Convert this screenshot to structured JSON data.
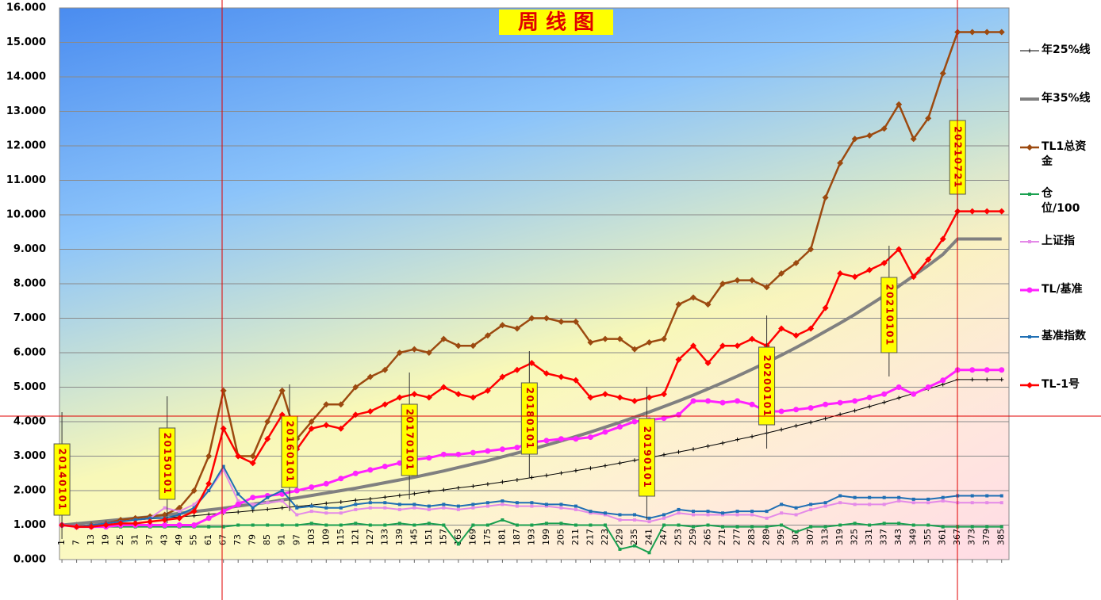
{
  "chart_data": {
    "type": "line",
    "title": "周 线 图",
    "xlim": [
      0,
      388
    ],
    "xticks": [
      1,
      7,
      13,
      19,
      25,
      31,
      37,
      43,
      49,
      55,
      61,
      67,
      73,
      79,
      85,
      91,
      97,
      103,
      109,
      115,
      121,
      127,
      133,
      139,
      145,
      151,
      157,
      163,
      169,
      175,
      181,
      187,
      193,
      199,
      205,
      211,
      217,
      223,
      229,
      235,
      241,
      247,
      253,
      259,
      265,
      271,
      277,
      283,
      289,
      295,
      301,
      307,
      313,
      319,
      325,
      331,
      337,
      343,
      349,
      355,
      361,
      367,
      373,
      379,
      385
    ],
    "x": [
      1,
      7,
      13,
      19,
      25,
      31,
      37,
      43,
      49,
      55,
      61,
      67,
      73,
      79,
      85,
      91,
      97,
      103,
      109,
      115,
      121,
      127,
      133,
      139,
      145,
      151,
      157,
      163,
      169,
      175,
      181,
      187,
      193,
      199,
      205,
      211,
      217,
      223,
      229,
      235,
      241,
      247,
      253,
      259,
      265,
      271,
      277,
      283,
      289,
      295,
      301,
      307,
      313,
      319,
      325,
      331,
      337,
      343,
      349,
      355,
      361,
      367,
      373,
      379,
      385
    ],
    "ylim": [
      0,
      16
    ],
    "yticks": [
      {
        "value": 0,
        "label": "0.000"
      },
      {
        "value": 1,
        "label": "1.000"
      },
      {
        "value": 2,
        "label": "2.000"
      },
      {
        "value": 3,
        "label": "3.000"
      },
      {
        "value": 4,
        "label": "4.000"
      },
      {
        "value": 5,
        "label": "5.000"
      },
      {
        "value": 6,
        "label": "6.000"
      },
      {
        "value": 7,
        "label": "7.000"
      },
      {
        "value": 8,
        "label": "8.000"
      },
      {
        "value": 9,
        "label": "9.000"
      },
      {
        "value": 10,
        "label": "10.000"
      },
      {
        "value": 11,
        "label": "11.000"
      },
      {
        "value": 12,
        "label": "12.000"
      },
      {
        "value": 13,
        "label": "13.000"
      },
      {
        "value": 14,
        "label": "14.000"
      },
      {
        "value": 15,
        "label": "15.000"
      },
      {
        "value": 16,
        "label": "16.000"
      }
    ],
    "grid": true,
    "legend": "right",
    "series": [
      {
        "name": "年25%线",
        "color": "#000000",
        "marker": "plus",
        "values": [
          1.0,
          1.03,
          1.06,
          1.08,
          1.11,
          1.14,
          1.18,
          1.21,
          1.24,
          1.27,
          1.31,
          1.35,
          1.38,
          1.42,
          1.46,
          1.5,
          1.54,
          1.58,
          1.63,
          1.67,
          1.72,
          1.76,
          1.81,
          1.86,
          1.91,
          1.97,
          2.02,
          2.08,
          2.13,
          2.19,
          2.25,
          2.31,
          2.38,
          2.44,
          2.51,
          2.58,
          2.65,
          2.72,
          2.8,
          2.88,
          2.95,
          3.04,
          3.12,
          3.2,
          3.29,
          3.38,
          3.48,
          3.57,
          3.67,
          3.77,
          3.88,
          3.98,
          4.09,
          4.21,
          4.32,
          4.44,
          4.56,
          4.69,
          4.82,
          4.95,
          5.08,
          5.22,
          5.22,
          5.22,
          5.22
        ]
      },
      {
        "name": "年35%线",
        "color": "#808080",
        "marker": "none",
        "values": [
          1.0,
          1.04,
          1.08,
          1.12,
          1.16,
          1.2,
          1.24,
          1.29,
          1.34,
          1.39,
          1.44,
          1.49,
          1.55,
          1.61,
          1.66,
          1.73,
          1.79,
          1.86,
          1.93,
          2.0,
          2.07,
          2.15,
          2.23,
          2.31,
          2.39,
          2.48,
          2.57,
          2.67,
          2.77,
          2.87,
          2.98,
          3.09,
          3.2,
          3.32,
          3.44,
          3.57,
          3.7,
          3.84,
          3.98,
          4.13,
          4.28,
          4.44,
          4.6,
          4.77,
          4.95,
          5.13,
          5.32,
          5.52,
          5.72,
          5.93,
          6.15,
          6.38,
          6.62,
          6.86,
          7.11,
          7.38,
          7.65,
          7.93,
          8.23,
          8.53,
          8.85,
          9.3,
          9.3,
          9.3,
          9.3
        ]
      },
      {
        "name": "TL1总资金",
        "color": "#9c4a10",
        "marker": "diamond",
        "values": [
          1.0,
          0.95,
          1.0,
          1.05,
          1.15,
          1.2,
          1.25,
          1.3,
          1.5,
          2.0,
          3.0,
          4.9,
          3.0,
          3.0,
          4.0,
          4.9,
          3.5,
          4.0,
          4.5,
          4.5,
          5.0,
          5.3,
          5.5,
          6.0,
          6.1,
          6.0,
          6.4,
          6.2,
          6.2,
          6.5,
          6.8,
          6.7,
          7.0,
          7.0,
          6.9,
          6.9,
          6.3,
          6.4,
          6.4,
          6.1,
          6.3,
          6.4,
          7.4,
          7.6,
          7.4,
          8.0,
          8.1,
          8.1,
          7.9,
          8.3,
          8.6,
          9.0,
          10.5,
          11.5,
          12.2,
          12.3,
          12.5,
          13.2,
          12.2,
          12.8,
          14.1,
          15.3,
          15.3,
          15.3,
          15.3
        ]
      },
      {
        "name": "仓 位/100",
        "color": "#1aa050",
        "marker": "square",
        "values": [
          1.0,
          0.95,
          0.95,
          0.95,
          0.95,
          0.95,
          0.95,
          0.95,
          0.95,
          0.95,
          0.95,
          0.95,
          1.0,
          1.0,
          1.0,
          1.0,
          1.0,
          1.05,
          1.0,
          1.0,
          1.05,
          1.0,
          1.0,
          1.05,
          1.0,
          1.05,
          1.0,
          0.45,
          1.0,
          1.0,
          1.15,
          1.0,
          1.0,
          1.05,
          1.05,
          1.0,
          1.0,
          1.0,
          0.3,
          0.4,
          0.2,
          1.0,
          1.0,
          0.95,
          1.0,
          0.95,
          0.95,
          0.95,
          0.95,
          1.0,
          0.8,
          0.95,
          0.95,
          1.0,
          1.05,
          1.0,
          1.05,
          1.05,
          1.0,
          1.0,
          0.95,
          0.95,
          0.95,
          0.95,
          0.95
        ]
      },
      {
        "name": "上证指",
        "color": "#e48ae8",
        "marker": "square",
        "values": [
          1.0,
          0.95,
          1.0,
          1.05,
          1.1,
          1.15,
          1.2,
          1.5,
          1.4,
          1.6,
          2.0,
          2.6,
          1.7,
          1.6,
          1.65,
          1.7,
          1.3,
          1.4,
          1.35,
          1.35,
          1.45,
          1.5,
          1.5,
          1.45,
          1.5,
          1.45,
          1.5,
          1.45,
          1.5,
          1.55,
          1.6,
          1.55,
          1.55,
          1.55,
          1.5,
          1.45,
          1.35,
          1.3,
          1.15,
          1.15,
          1.1,
          1.2,
          1.35,
          1.3,
          1.3,
          1.3,
          1.3,
          1.3,
          1.2,
          1.35,
          1.3,
          1.45,
          1.55,
          1.65,
          1.6,
          1.6,
          1.6,
          1.7,
          1.65,
          1.65,
          1.7,
          1.65,
          1.65,
          1.65,
          1.65
        ]
      },
      {
        "name": "TL/基准",
        "color": "#ff22ff",
        "marker": "circle",
        "values": [
          1.0,
          0.95,
          0.95,
          0.95,
          1.0,
          1.0,
          1.0,
          1.0,
          1.0,
          1.0,
          1.2,
          1.4,
          1.6,
          1.8,
          1.85,
          1.9,
          2.0,
          2.1,
          2.2,
          2.35,
          2.5,
          2.6,
          2.7,
          2.8,
          2.9,
          2.95,
          3.05,
          3.05,
          3.1,
          3.15,
          3.2,
          3.25,
          3.4,
          3.45,
          3.5,
          3.5,
          3.55,
          3.7,
          3.85,
          4.0,
          4.05,
          4.1,
          4.2,
          4.6,
          4.6,
          4.55,
          4.6,
          4.5,
          4.3,
          4.3,
          4.35,
          4.4,
          4.5,
          4.55,
          4.6,
          4.7,
          4.8,
          5.0,
          4.8,
          5.0,
          5.2,
          5.5,
          5.5,
          5.5,
          5.5
        ]
      },
      {
        "name": "基准指数",
        "color": "#1f6fb4",
        "marker": "square",
        "values": [
          1.0,
          0.95,
          1.0,
          1.05,
          1.1,
          1.15,
          1.2,
          1.2,
          1.3,
          1.5,
          2.0,
          2.7,
          1.9,
          1.5,
          1.8,
          2.0,
          1.5,
          1.55,
          1.5,
          1.5,
          1.6,
          1.65,
          1.65,
          1.6,
          1.6,
          1.55,
          1.6,
          1.55,
          1.6,
          1.65,
          1.7,
          1.65,
          1.65,
          1.6,
          1.6,
          1.55,
          1.4,
          1.35,
          1.3,
          1.3,
          1.2,
          1.3,
          1.45,
          1.4,
          1.4,
          1.35,
          1.4,
          1.4,
          1.4,
          1.6,
          1.5,
          1.6,
          1.65,
          1.85,
          1.8,
          1.8,
          1.8,
          1.8,
          1.75,
          1.75,
          1.8,
          1.85,
          1.85,
          1.85,
          1.85
        ]
      },
      {
        "name": "TL-1号",
        "color": "#ff0000",
        "marker": "diamond",
        "values": [
          1.0,
          0.95,
          0.95,
          1.0,
          1.05,
          1.05,
          1.1,
          1.15,
          1.2,
          1.4,
          2.2,
          3.8,
          3.0,
          2.8,
          3.5,
          4.2,
          3.2,
          3.8,
          3.9,
          3.8,
          4.2,
          4.3,
          4.5,
          4.7,
          4.8,
          4.7,
          5.0,
          4.8,
          4.7,
          4.9,
          5.3,
          5.5,
          5.7,
          5.4,
          5.3,
          5.2,
          4.7,
          4.8,
          4.7,
          4.6,
          4.7,
          4.8,
          5.8,
          6.2,
          5.7,
          6.2,
          6.2,
          6.4,
          6.2,
          6.7,
          6.5,
          6.7,
          7.3,
          8.3,
          8.2,
          8.4,
          8.6,
          9.0,
          8.2,
          8.7,
          9.3,
          10.1,
          10.1,
          10.1,
          10.1
        ]
      }
    ],
    "annotations": [
      {
        "label": "20140101",
        "x": 1
      },
      {
        "label": "20150101",
        "x": 44
      },
      {
        "label": "20160101",
        "x": 94
      },
      {
        "label": "20170101",
        "x": 143
      },
      {
        "label": "20180101",
        "x": 192
      },
      {
        "label": "20190101",
        "x": 240
      },
      {
        "label": "20200101",
        "x": 289
      },
      {
        "label": "20210101",
        "x": 339
      },
      {
        "label": "20210721",
        "x": 367
      }
    ]
  }
}
